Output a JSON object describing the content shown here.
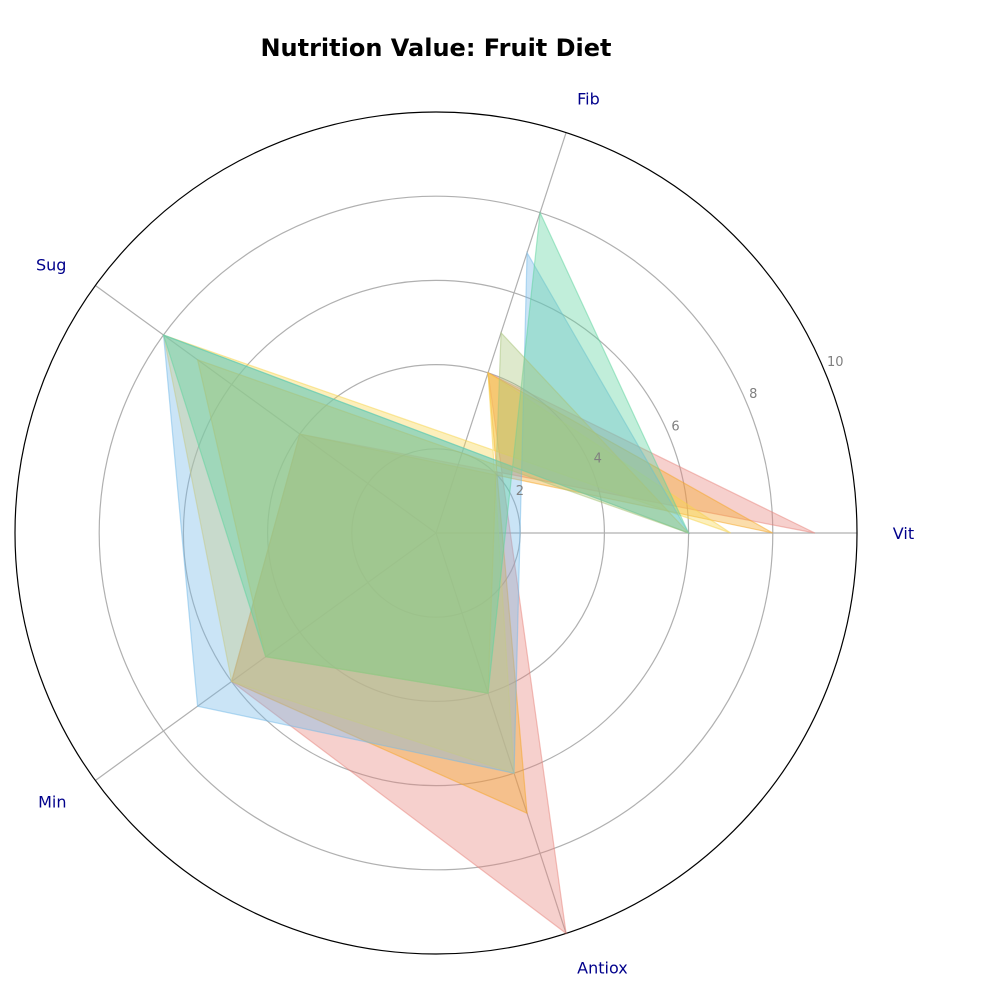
{
  "chart_data": {
    "type": "radar",
    "title": "Nutrition Value: Fruit Diet",
    "axes": [
      "Vit",
      "Fib",
      "Sug",
      "Min",
      "Antiox"
    ],
    "axis_order_display": [
      "Vit",
      "Fib",
      "Antiox",
      "Min",
      "Sug"
    ],
    "rlim": [
      0,
      10
    ],
    "rticks": [
      2,
      4,
      6,
      8,
      10
    ],
    "grid": true,
    "series": [
      {
        "color": "#e8837c",
        "values": {
          "Vit": 9,
          "Fib": 4,
          "Antiox": 10,
          "Min": 6,
          "Sug": 4
        }
      },
      {
        "color": "#f5a623",
        "values": {
          "Vit": 8,
          "Fib": 4,
          "Antiox": 7,
          "Min": 6,
          "Sug": 4
        }
      },
      {
        "color": "#f7d44c",
        "values": {
          "Vit": 7,
          "Fib": 4,
          "Antiox": 6,
          "Min": 6,
          "Sug": 8
        }
      },
      {
        "color": "#74b9e7",
        "values": {
          "Vit": 6,
          "Fib": 7,
          "Antiox": 6,
          "Min": 7,
          "Sug": 8
        }
      },
      {
        "color": "#5dd39e",
        "values": {
          "Vit": 6,
          "Fib": 8,
          "Antiox": 4,
          "Min": 5,
          "Sug": 8
        }
      },
      {
        "color": "#a8c47a",
        "values": {
          "Vit": 6,
          "Fib": 5,
          "Antiox": 4,
          "Min": 5,
          "Sug": 7
        }
      }
    ]
  }
}
